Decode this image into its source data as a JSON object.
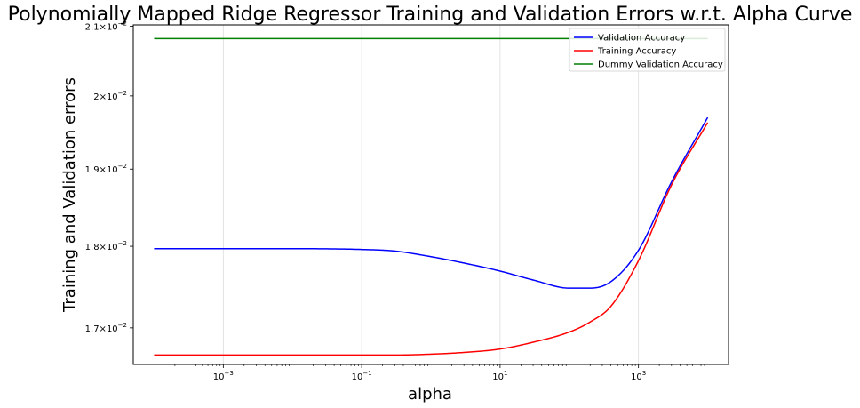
{
  "chart_data": {
    "type": "line",
    "title": "Polynomially Mapped Ridge Regressor Training and Validation Errors w.r.t. Alpha Curve",
    "xlabel": "alpha",
    "ylabel": "Training and Validation errors",
    "xscale": "log",
    "yscale": "log",
    "xlim": [
      5e-05,
      20000
    ],
    "ylim": [
      0.01657,
      0.02102
    ],
    "grid": "x-major",
    "legend_position": "top-right",
    "x_ticks": [
      {
        "value": 0.001,
        "base": "10",
        "exp": "−3"
      },
      {
        "value": 0.1,
        "base": "10",
        "exp": "−1"
      },
      {
        "value": 10,
        "base": "10",
        "exp": "1"
      },
      {
        "value": 1000,
        "base": "10",
        "exp": "3"
      }
    ],
    "y_ticks": [
      {
        "value": 0.017,
        "mant": "1.7",
        "exp": "−2"
      },
      {
        "value": 0.018,
        "mant": "1.8",
        "exp": "−2"
      },
      {
        "value": 0.019,
        "mant": "1.9",
        "exp": "−2"
      },
      {
        "value": 0.02,
        "mant": "2",
        "exp": "−2"
      },
      {
        "value": 0.021,
        "mant": "2.1",
        "exp": "−2"
      }
    ],
    "series": [
      {
        "name": "Validation Accuracy",
        "color": "#0000ff",
        "x": [
          0.0001,
          0.001,
          0.01,
          0.1,
          0.3,
          1,
          3,
          10,
          30,
          100,
          200,
          400,
          1000,
          3000,
          10000
        ],
        "y": [
          0.01797,
          0.01797,
          0.01797,
          0.01796,
          0.01794,
          0.01787,
          0.01779,
          0.01769,
          0.01758,
          0.01748,
          0.01748,
          0.01756,
          0.01795,
          0.01883,
          0.0197
        ]
      },
      {
        "name": "Training Accuracy",
        "color": "#ff0000",
        "x": [
          0.0001,
          0.001,
          0.01,
          0.1,
          0.3,
          1,
          3,
          10,
          30,
          100,
          200,
          400,
          1000,
          3000,
          10000
        ],
        "y": [
          0.01668,
          0.01668,
          0.01668,
          0.01668,
          0.01668,
          0.01669,
          0.01671,
          0.01675,
          0.01683,
          0.01695,
          0.01707,
          0.01726,
          0.01782,
          0.01879,
          0.01963
        ]
      },
      {
        "name": "Dummy Validation Accuracy",
        "color": "#008000",
        "x": [
          0.0001,
          10000
        ],
        "y": [
          0.02082,
          0.02082
        ]
      }
    ]
  }
}
